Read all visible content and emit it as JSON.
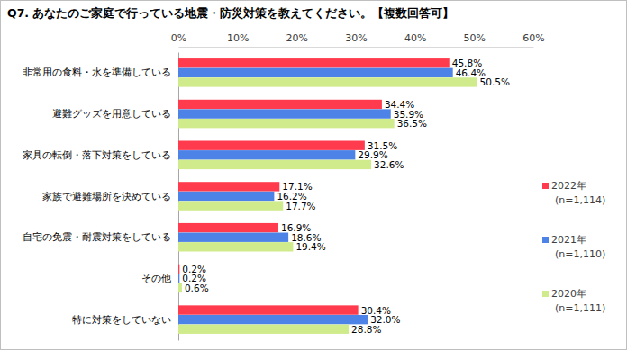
{
  "chart_data": {
    "type": "bar",
    "title": "Q7. あなたのご家庭で行っている地震・防災対策を教えてください。【複数回答可】",
    "orientation": "horizontal",
    "data_labels": true,
    "grid": false,
    "legend": "right",
    "categories": [
      "非常用の食料・水を準備している",
      "避難グッズを用意している",
      "家具の転倒・落下対策をしている",
      "家族で避難場所を決めている",
      "自宅の免震・耐震対策をしている",
      "その他",
      "特に対策をしていない"
    ],
    "xlim": [
      0,
      60
    ],
    "xticks": [
      {
        "value": 0,
        "label": "0%"
      },
      {
        "value": 10,
        "label": "10%"
      },
      {
        "value": 20,
        "label": "20%"
      },
      {
        "value": 30,
        "label": "30%"
      },
      {
        "value": 40,
        "label": "40%"
      },
      {
        "value": 50,
        "label": "50%"
      },
      {
        "value": 60,
        "label": "60%"
      }
    ],
    "series": [
      {
        "name": "2022年 (n=1,114)",
        "color": "#ff3b4d",
        "values": [
          45.8,
          34.4,
          31.5,
          17.1,
          16.9,
          0.2,
          30.4
        ],
        "value_labels": [
          "45.8%",
          "34.4%",
          "31.5%",
          "17.1%",
          "16.9%",
          "0.2%",
          "30.4%"
        ]
      },
      {
        "name": "2021年 (n=1,110)",
        "color": "#4d82e6",
        "values": [
          46.4,
          35.9,
          29.9,
          16.2,
          18.6,
          0.2,
          32.0
        ],
        "value_labels": [
          "46.4%",
          "35.9%",
          "29.9%",
          "16.2%",
          "18.6%",
          "0.2%",
          "32.0%"
        ]
      },
      {
        "name": "2020年 (n=1,111)",
        "color": "#cfeb8c",
        "values": [
          50.5,
          36.5,
          32.6,
          17.7,
          19.4,
          0.6,
          28.8
        ],
        "value_labels": [
          "50.5%",
          "36.5%",
          "32.6%",
          "17.7%",
          "19.4%",
          "0.6%",
          "28.8%"
        ]
      }
    ]
  }
}
